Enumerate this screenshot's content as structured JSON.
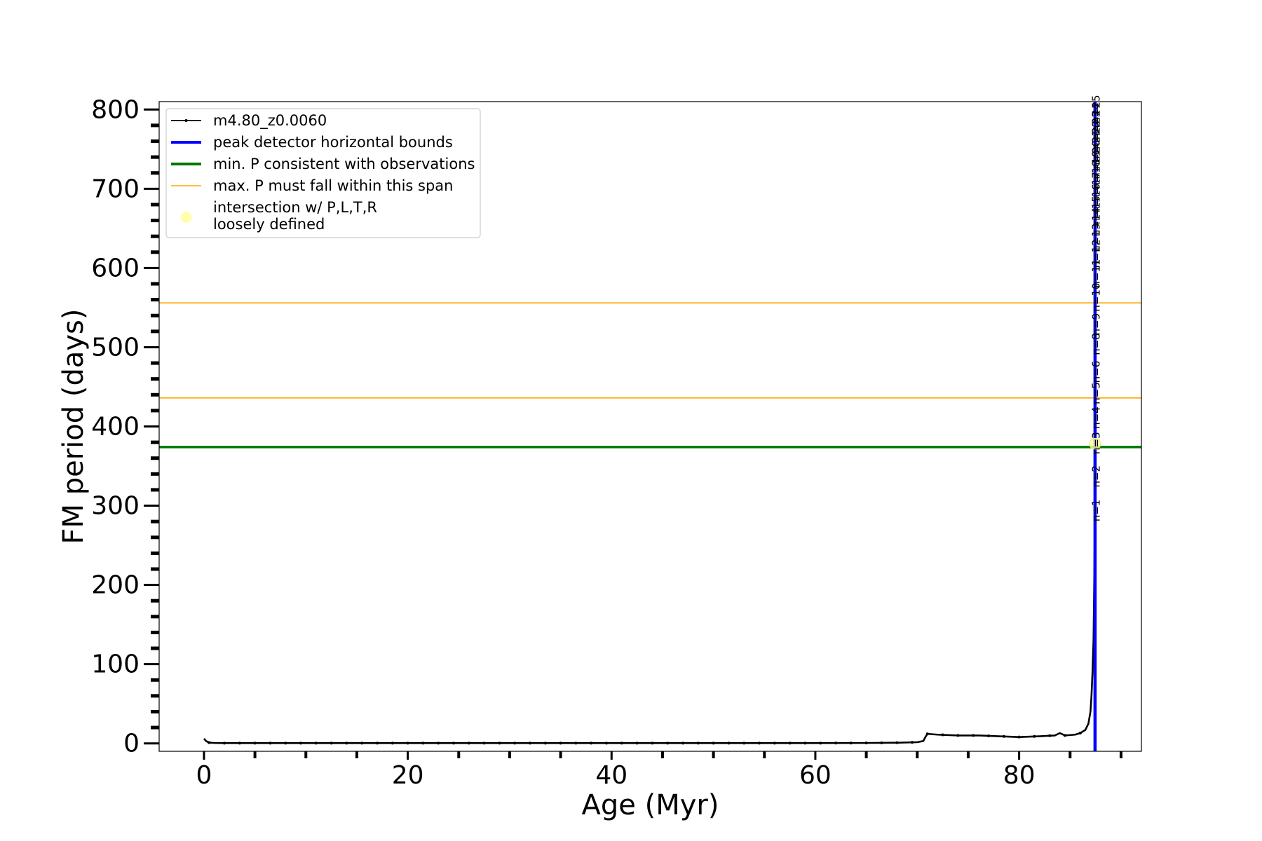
{
  "chart_data": {
    "type": "line",
    "xlabel": "Age (Myr)",
    "ylabel": "FM period (days)",
    "xlim": [
      -4.4,
      92
    ],
    "ylim": [
      -10,
      810
    ],
    "x_major_ticks": [
      0,
      20,
      40,
      60,
      80
    ],
    "x_tick_labels": [
      "0",
      "20",
      "40",
      "60",
      "80"
    ],
    "x_minor_step": 5,
    "y_major_ticks": [
      0,
      100,
      200,
      300,
      400,
      500,
      600,
      700,
      800
    ],
    "y_tick_labels": [
      "0",
      "100",
      "200",
      "300",
      "400",
      "500",
      "600",
      "700",
      "800"
    ],
    "y_minor_step": 20,
    "grid": false,
    "legend_placement": "upper-left",
    "series": [
      {
        "name": "m4.80_z0.0060",
        "color": "#000000",
        "x": [
          0.0,
          0.2,
          0.5,
          1,
          2,
          5,
          10,
          20,
          30,
          40,
          50,
          60,
          65,
          68,
          70,
          70.6,
          70.8,
          71.0,
          72,
          74,
          76,
          78,
          80,
          82,
          83.5,
          84.0,
          84.5,
          85.5,
          86.0,
          86.5,
          86.8,
          87.0,
          87.1,
          87.2,
          87.3,
          87.35,
          87.4,
          87.42
        ],
        "values": [
          6,
          3,
          1,
          0.5,
          0.3,
          0.3,
          0.3,
          0.3,
          0.3,
          0.3,
          0.3,
          0.3,
          0.5,
          0.8,
          1.5,
          3,
          8,
          12,
          11,
          10,
          10,
          9,
          8,
          9,
          10,
          13,
          10,
          11,
          13,
          17,
          25,
          40,
          60,
          90,
          130,
          180,
          240,
          260
        ]
      },
      {
        "name": "peak detector horizontal bounds",
        "color": "#0000ff",
        "x": [
          87.45,
          87.45
        ],
        "values": [
          -10,
          810
        ]
      },
      {
        "name": "min. P consistent with observations",
        "color": "#007700",
        "x": [
          -4.4,
          92
        ],
        "values": [
          374,
          374
        ]
      },
      {
        "name": "max. P must fall within this span",
        "color": "#ffa500",
        "lines_y": [
          436,
          556
        ]
      }
    ],
    "intersection_marker": {
      "name_line1": "intersection w/ P,L,T,R",
      "name_line2": "loosely defined",
      "x": 87.45,
      "y": 378,
      "color": "#ffff99"
    },
    "mode_labels": {
      "x": 87.9,
      "items": [
        {
          "text": "n=1",
          "y": 280
        },
        {
          "text": "n=2",
          "y": 323
        },
        {
          "text": "n=3",
          "y": 365
        },
        {
          "text": "n=4",
          "y": 397
        },
        {
          "text": "n=5",
          "y": 428
        },
        {
          "text": "n=6",
          "y": 455
        },
        {
          "text": "n=8",
          "y": 490
        },
        {
          "text": "n=9",
          "y": 515
        },
        {
          "text": "n=10",
          "y": 545
        },
        {
          "text": "n=11",
          "y": 575
        },
        {
          "text": "n=12",
          "y": 600
        },
        {
          "text": "n=13",
          "y": 620
        },
        {
          "text": "n=14",
          "y": 640
        },
        {
          "text": "n=15",
          "y": 655
        },
        {
          "text": "n=16",
          "y": 670
        },
        {
          "text": "n=17",
          "y": 685
        },
        {
          "text": "n=18",
          "y": 700
        },
        {
          "text": "n=19",
          "y": 712
        },
        {
          "text": "n=20",
          "y": 725
        },
        {
          "text": "n=21",
          "y": 738
        },
        {
          "text": "n=22",
          "y": 750
        },
        {
          "text": "n=23",
          "y": 762
        },
        {
          "text": "n=24",
          "y": 772
        },
        {
          "text": "n=25",
          "y": 782
        }
      ]
    },
    "legend": [
      {
        "label": "m4.80_z0.0060",
        "kind": "line-dots",
        "color": "#000000"
      },
      {
        "label": "peak detector horizontal bounds",
        "kind": "line",
        "color": "#0000ff"
      },
      {
        "label": "min. P consistent with observations",
        "kind": "line",
        "color": "#007700"
      },
      {
        "label": "max. P must fall within this span",
        "kind": "thin-line",
        "color": "#ffa500"
      },
      {
        "label": "intersection w/ P,L,T,R",
        "label2": "loosely defined",
        "kind": "marker",
        "color": "#ffff99"
      }
    ]
  }
}
